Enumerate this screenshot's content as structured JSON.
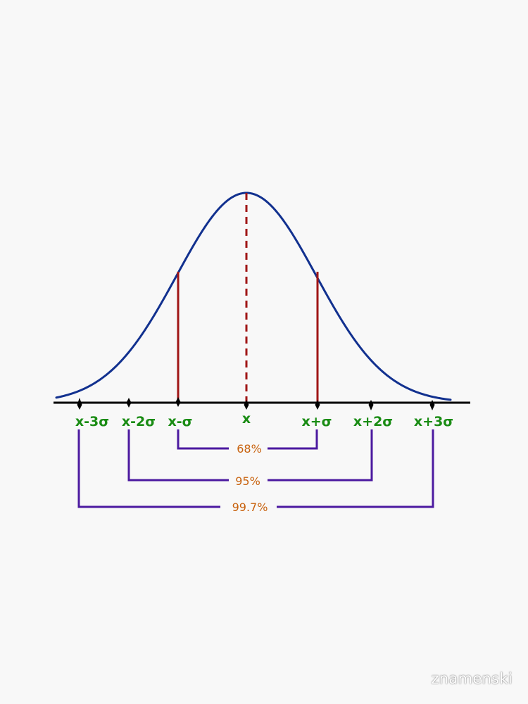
{
  "labels": {
    "m3": "x-3σ",
    "m2": "x-2σ",
    "m1": "x-σ",
    "mean": "x",
    "p1": "x+σ",
    "p2": "x+2σ",
    "p3": "x+3σ"
  },
  "ranges": {
    "one_sigma": "68%",
    "two_sigma": "95%",
    "three_sigma": "99.7%"
  },
  "watermark": "znamenski",
  "colors": {
    "curve": "#12318f",
    "sigma_lines": "#a01616",
    "axis": "#000000",
    "labels": "#1a8c14",
    "brackets": "#4c1aa0",
    "percent_text": "#c8620e",
    "background": "#f8f8f8"
  }
}
